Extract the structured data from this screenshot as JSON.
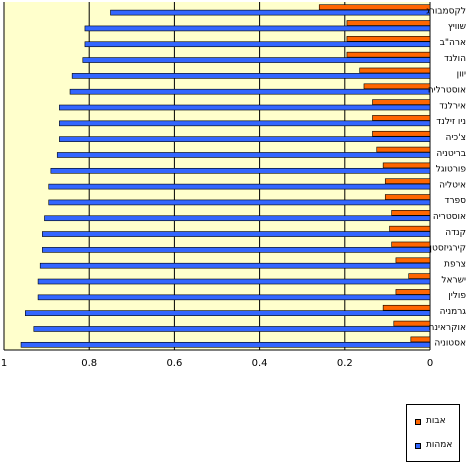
{
  "chart_data": {
    "type": "bar",
    "orientation": "horizontal",
    "x_axis": "reversed",
    "categories": [
      "לקסמבורג",
      "שוויץ",
      "ארה\"ב",
      "הולנד",
      "יוון",
      "אוסטרליה",
      "אירלנד",
      "ניו זילנד",
      "צ'כיה",
      "בריטניה",
      "פורטוגל",
      "איטליה",
      "ספרד",
      "אוסטריה",
      "קנדה",
      "קירגיזסטן",
      "צרפת",
      "ישראל",
      "פולין",
      "גרמניה",
      "אוקראינה",
      "אסטוניה"
    ],
    "series": [
      {
        "name": "אבות",
        "color": "#ff6600",
        "values": [
          0.26,
          0.195,
          0.195,
          0.195,
          0.165,
          0.155,
          0.135,
          0.135,
          0.135,
          0.125,
          0.11,
          0.105,
          0.105,
          0.09,
          0.095,
          0.09,
          0.08,
          0.05,
          0.08,
          0.11,
          0.085,
          0.045
        ]
      },
      {
        "name": "אמהות",
        "color": "#3366ff",
        "values": [
          0.75,
          0.81,
          0.81,
          0.815,
          0.84,
          0.845,
          0.87,
          0.87,
          0.87,
          0.875,
          0.89,
          0.895,
          0.895,
          0.905,
          0.91,
          0.91,
          0.915,
          0.92,
          0.92,
          0.95,
          0.93,
          0.96
        ]
      }
    ],
    "xlim": [
      0,
      1
    ],
    "x_ticks": [
      "0",
      "0.2",
      "0.4",
      "0.6",
      "0.8",
      "1"
    ],
    "grid": true,
    "legend_position": "bottom-right"
  },
  "colors": {
    "plot_background": "#ffffcc",
    "gridline": "#000000",
    "bar_outline": "#000000"
  }
}
